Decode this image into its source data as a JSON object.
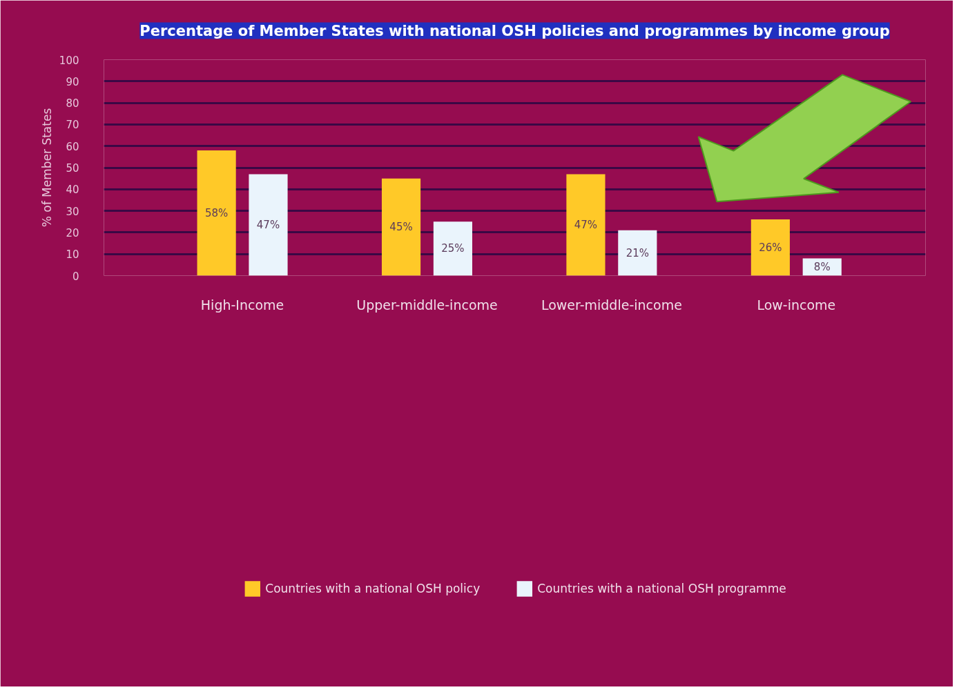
{
  "chart_data": {
    "type": "bar",
    "title": "Percentage of Member States with national OSH policies and programmes by income group",
    "ylabel": "% of Member States",
    "categories": [
      "High-Income",
      "Upper-middle-income",
      "Lower-middle-income",
      "Low-income"
    ],
    "series": [
      {
        "name": "Countries with a national OSH policy",
        "color": "#ffc928",
        "values": [
          58,
          45,
          47,
          26
        ],
        "value_labels": [
          "58%",
          "45%",
          "47%",
          "26%"
        ]
      },
      {
        "name": "Countries with a national OSH programme",
        "color": "#eaf4fc",
        "values": [
          47,
          25,
          21,
          8
        ],
        "value_labels": [
          "47%",
          "25%",
          "21%",
          "8%"
        ]
      }
    ],
    "ylim": [
      0,
      100
    ],
    "yticks": [
      0,
      10,
      20,
      30,
      40,
      50,
      60,
      70,
      80,
      90,
      100
    ],
    "grid": "y",
    "legend": "bottom"
  }
}
